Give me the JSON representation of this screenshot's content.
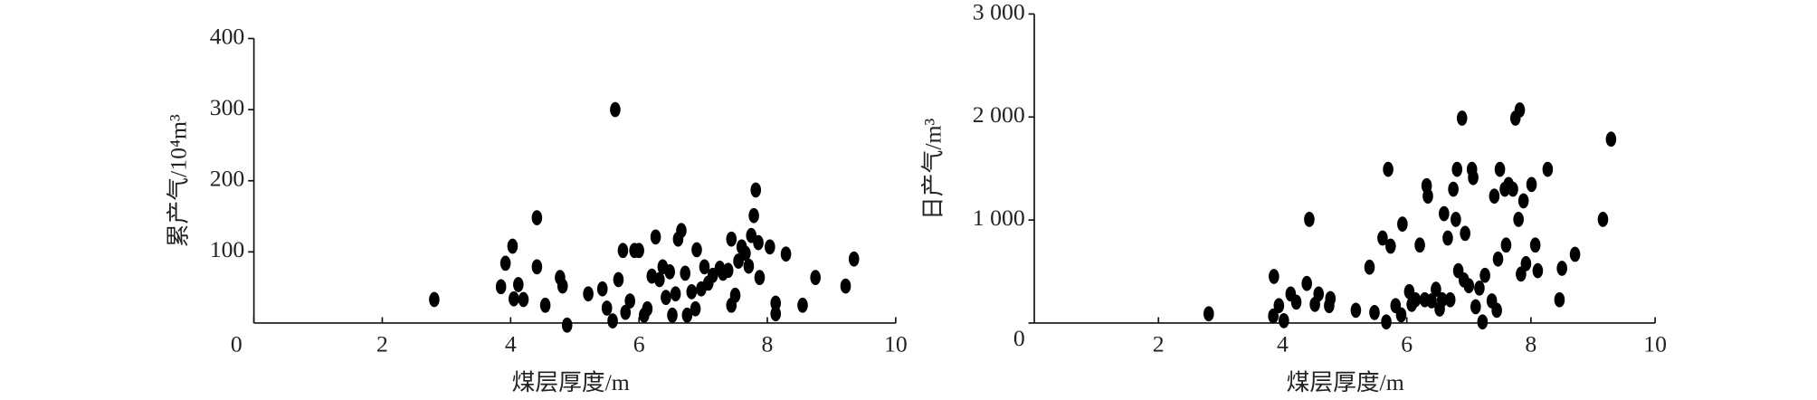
{
  "chart_data": [
    {
      "type": "scatter",
      "x_label": "煤层厚度/m",
      "y_label": "累产气/10⁴m³",
      "color": "#000000",
      "xlim": [
        0,
        10
      ],
      "xticks": [
        0,
        2,
        4,
        6,
        8,
        10
      ],
      "ylim": [
        0,
        400
      ],
      "yticks": [
        100,
        200,
        300,
        400
      ],
      "x": [
        2.81,
        3.85,
        3.92,
        4.03,
        4.05,
        4.12,
        4.2,
        4.41,
        4.41,
        4.54,
        4.77,
        4.81,
        4.88,
        5.21,
        5.43,
        5.5,
        5.63,
        5.59,
        5.68,
        5.75,
        5.79,
        5.86,
        5.93,
        6.0,
        6.08,
        6.13,
        6.2,
        6.26,
        6.32,
        6.37,
        6.42,
        6.48,
        6.52,
        6.57,
        6.61,
        6.66,
        6.72,
        6.75,
        6.82,
        6.88,
        6.9,
        6.97,
        7.02,
        7.08,
        7.15,
        7.26,
        7.31,
        7.39,
        7.44,
        7.44,
        7.5,
        7.55,
        7.6,
        7.66,
        7.71,
        7.75,
        7.79,
        7.82,
        7.86,
        7.88,
        8.04,
        8.13,
        8.13,
        8.29,
        8.55,
        8.75,
        9.22,
        9.35
      ],
      "y": [
        33,
        51,
        84,
        108,
        34,
        54,
        33,
        148,
        79,
        25,
        64,
        52,
        -3,
        41,
        48,
        21,
        300,
        3,
        61,
        102,
        15,
        31,
        102,
        102,
        11,
        20,
        66,
        121,
        61,
        79,
        36,
        72,
        11,
        41,
        118,
        130,
        70,
        11,
        44,
        20,
        103,
        48,
        79,
        56,
        67,
        77,
        70,
        74,
        118,
        25,
        39,
        87,
        107,
        98,
        80,
        123,
        151,
        187,
        113,
        64,
        107,
        28,
        13,
        97,
        25,
        64,
        52,
        90
      ]
    },
    {
      "type": "scatter",
      "x_label": "煤层厚度/m",
      "y_label": "日产气/m³",
      "color": "#000000",
      "xlim": [
        0,
        10
      ],
      "xticks": [
        2,
        4,
        6,
        8,
        10
      ],
      "ylim": [
        0,
        3000
      ],
      "yticks": [
        0,
        {
          "value": 1000,
          "label": "1 000"
        },
        {
          "value": 2000,
          "label": "2 000"
        },
        {
          "value": 3000,
          "label": "3 000"
        }
      ],
      "x": [
        2.81,
        3.85,
        3.86,
        3.94,
        4.02,
        4.13,
        4.22,
        4.39,
        4.43,
        4.52,
        4.58,
        4.75,
        4.77,
        5.18,
        5.4,
        5.48,
        5.61,
        5.7,
        5.74,
        5.67,
        5.82,
        5.91,
        5.93,
        6.04,
        6.08,
        6.14,
        6.21,
        6.29,
        6.32,
        6.34,
        6.4,
        6.47,
        6.53,
        6.57,
        6.6,
        6.66,
        6.7,
        6.75,
        6.79,
        6.81,
        6.83,
        6.89,
        6.92,
        6.94,
        7.0,
        7.05,
        7.07,
        7.11,
        7.17,
        7.22,
        7.26,
        7.37,
        7.41,
        7.45,
        7.47,
        7.5,
        7.58,
        7.6,
        7.64,
        7.71,
        7.75,
        7.8,
        7.82,
        7.84,
        7.88,
        7.92,
        8.01,
        8.07,
        8.11,
        8.27,
        8.46,
        8.5,
        8.71,
        9.16,
        9.29
      ],
      "y": [
        90,
        68,
        452,
        169,
        23,
        282,
        203,
        384,
        1006,
        181,
        282,
        169,
        237,
        124,
        542,
        102,
        825,
        1492,
        746,
        11,
        169,
        79,
        960,
        305,
        181,
        226,
        757,
        226,
        1333,
        1232,
        215,
        328,
        136,
        226,
        1062,
        825,
        226,
        1299,
        1006,
        1492,
        508,
        1989,
        418,
        870,
        362,
        1492,
        1412,
        158,
        339,
        11,
        463,
        215,
        1232,
        124,
        621,
        1492,
        1299,
        757,
        1345,
        1299,
        1989,
        1006,
        2068,
        475,
        1186,
        576,
        1345,
        757,
        508,
        1492,
        226,
        531,
        667,
        1006,
        1785
      ]
    }
  ]
}
